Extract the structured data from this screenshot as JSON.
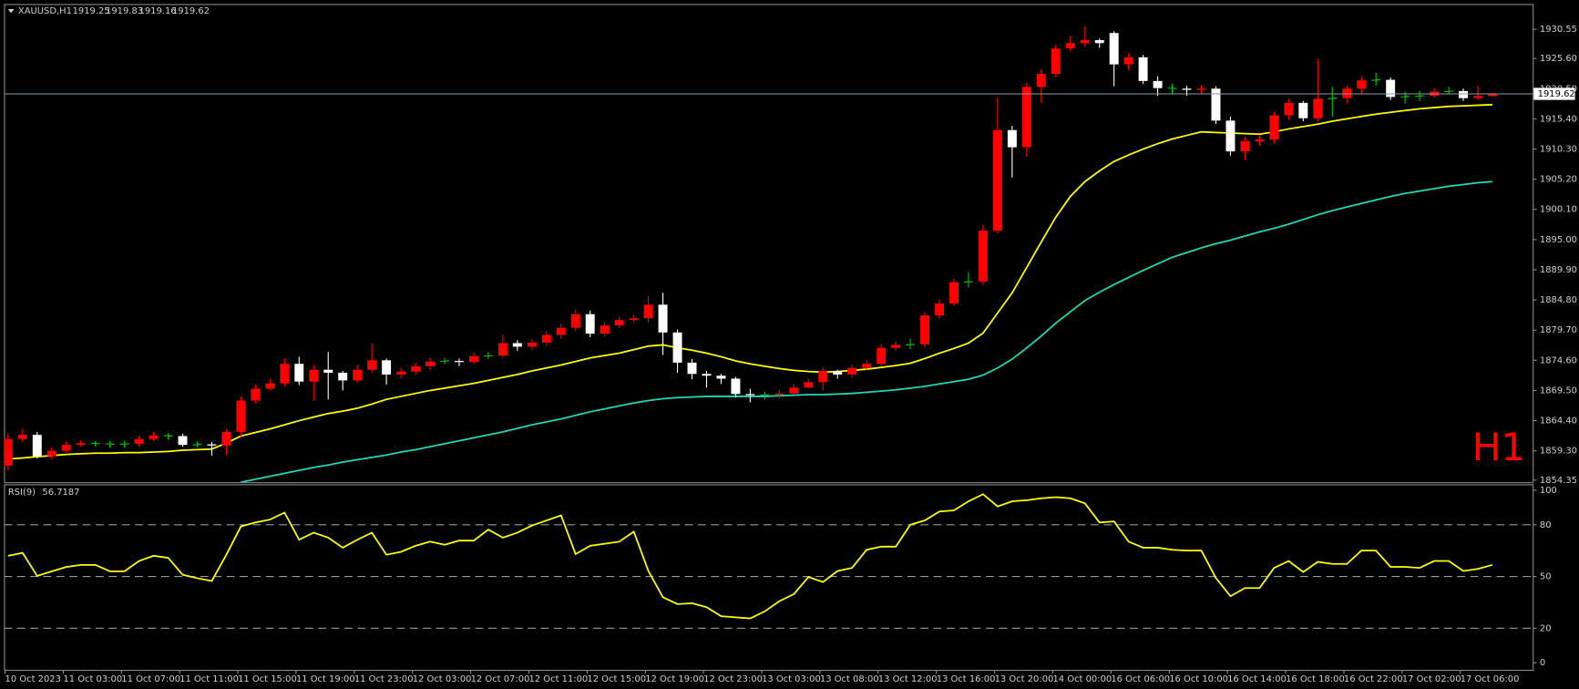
{
  "chart_data": [
    {
      "type": "candlestick",
      "title": "XAUUSD,H1",
      "annotation": "H1",
      "annotation_color": "#ff0000",
      "up_color": "#ff0000",
      "down_color": "#ffffff",
      "doji_color": "#00c800",
      "price_line": true,
      "grid": false,
      "categories": [
        "10 Oct 2023",
        null,
        null,
        null,
        "11 Oct 03:00",
        null,
        null,
        null,
        "11 Oct 07:00",
        null,
        null,
        null,
        "11 Oct 11:00",
        null,
        null,
        null,
        "11 Oct 15:00",
        null,
        null,
        null,
        "11 Oct 19:00",
        null,
        null,
        null,
        "11 Oct 23:00",
        null,
        null,
        null,
        "12 Oct 03:00",
        null,
        null,
        null,
        "12 Oct 07:00",
        null,
        null,
        null,
        "12 Oct 11:00",
        null,
        null,
        null,
        "12 Oct 15:00",
        null,
        null,
        null,
        "12 Oct 19:00",
        null,
        null,
        null,
        "12 Oct 23:00",
        null,
        null,
        null,
        "13 Oct 03:00",
        null,
        null,
        null,
        "13 Oct 08:00",
        null,
        null,
        null,
        "13 Oct 12:00",
        null,
        null,
        null,
        "13 Oct 16:00",
        null,
        null,
        null,
        "13 Oct 20:00",
        null,
        null,
        null,
        "14 Oct 00:00",
        null,
        null,
        null,
        "16 Oct 06:00",
        null,
        null,
        null,
        "16 Oct 10:00",
        null,
        null,
        null,
        "16 Oct 14:00",
        null,
        null,
        null,
        "16 Oct 18:00",
        null,
        null,
        null,
        "16 Oct 22:00",
        null,
        null,
        null,
        "17 Oct 02:00",
        null,
        null,
        null,
        "17 Oct 06:00",
        null,
        null
      ],
      "open": [
        1856.8,
        1861.3,
        1862.0,
        1858.4,
        1859.3,
        1860.3,
        1860.6,
        1860.5,
        1860.4,
        1860.5,
        1861.3,
        1861.9,
        1861.8,
        1860.3,
        1860.4,
        1860.2,
        1862.5,
        1867.8,
        1869.8,
        1870.7,
        1874.0,
        1871.0,
        1873.0,
        1872.5,
        1871.2,
        1873.0,
        1874.6,
        1872.2,
        1872.7,
        1873.6,
        1874.4,
        1874.5,
        1874.3,
        1875.3,
        1875.4,
        1877.5,
        1876.9,
        1877.6,
        1878.9,
        1880.1,
        1882.4,
        1879.1,
        1880.5,
        1881.4,
        1881.7,
        1884.0,
        1879.3,
        1874.2,
        1872.3,
        1872.0,
        1871.5,
        1868.9,
        1868.7,
        1868.8,
        1869.0,
        1870.0,
        1870.9,
        1872.8,
        1872.2,
        1873.3,
        1874.0,
        1876.7,
        1877.2,
        1877.3,
        1882.2,
        1884.2,
        1887.8,
        1887.9,
        1896.5,
        1913.5,
        1910.6,
        1920.8,
        1923.0,
        1927.3,
        1928.2,
        1928.7,
        1929.9,
        1924.6,
        1925.8,
        1921.8,
        1920.6,
        1920.5,
        1920.3,
        1920.5,
        1915.1,
        1909.9,
        1911.6,
        1911.9,
        1916.0,
        1918.1,
        1915.5,
        1918.8,
        1918.9,
        1920.5,
        1921.9,
        1922.0,
        1919.1,
        1919.2,
        1919.3,
        1920.0,
        1920.1,
        1918.9,
        1919.25
      ],
      "high": [
        1862.3,
        1863.0,
        1862.5,
        1859.9,
        1860.9,
        1861.1,
        1861.0,
        1861.0,
        1861.0,
        1861.8,
        1862.5,
        1862.3,
        1862.2,
        1860.9,
        1860.8,
        1863.0,
        1868.5,
        1870.5,
        1871.5,
        1875.0,
        1875.2,
        1873.8,
        1876.0,
        1872.8,
        1873.8,
        1877.4,
        1874.9,
        1873.3,
        1874.2,
        1875.0,
        1875.0,
        1874.9,
        1875.9,
        1876.0,
        1879.0,
        1878.0,
        1878.2,
        1879.6,
        1880.8,
        1883.2,
        1883.0,
        1881.0,
        1882.0,
        1882.3,
        1885.5,
        1886.0,
        1879.8,
        1874.8,
        1872.8,
        1872.3,
        1871.8,
        1869.8,
        1869.3,
        1869.6,
        1870.6,
        1871.5,
        1873.4,
        1873.0,
        1873.9,
        1874.6,
        1877.3,
        1877.8,
        1878.2,
        1882.8,
        1884.9,
        1888.4,
        1889.5,
        1897.5,
        1919.0,
        1914.2,
        1921.5,
        1923.8,
        1927.9,
        1929.5,
        1931.0,
        1929.0,
        1930.2,
        1926.5,
        1926.2,
        1922.6,
        1921.3,
        1921.0,
        1921.1,
        1920.9,
        1915.8,
        1912.3,
        1912.6,
        1916.6,
        1918.8,
        1918.4,
        1925.5,
        1920.8,
        1921.0,
        1922.6,
        1923.2,
        1922.4,
        1920.0,
        1920.1,
        1920.6,
        1920.8,
        1920.5,
        1921.0,
        1919.83
      ],
      "low": [
        1856.0,
        1860.8,
        1858.0,
        1857.9,
        1859.0,
        1860.0,
        1860.0,
        1859.8,
        1859.8,
        1860.0,
        1861.0,
        1861.2,
        1860.0,
        1859.9,
        1858.5,
        1858.6,
        1861.5,
        1867.3,
        1869.5,
        1870.1,
        1870.4,
        1867.8,
        1868.0,
        1869.5,
        1870.8,
        1872.5,
        1870.5,
        1871.6,
        1872.2,
        1873.0,
        1873.9,
        1873.6,
        1874.0,
        1874.8,
        1875.0,
        1876.2,
        1876.3,
        1877.0,
        1878.2,
        1879.5,
        1878.5,
        1878.6,
        1880.0,
        1881.0,
        1881.0,
        1875.5,
        1872.5,
        1871.4,
        1870.0,
        1870.6,
        1868.3,
        1867.5,
        1868.0,
        1868.2,
        1868.9,
        1869.9,
        1869.5,
        1871.5,
        1871.6,
        1873.0,
        1873.6,
        1876.3,
        1876.5,
        1876.8,
        1881.6,
        1883.8,
        1886.9,
        1887.3,
        1896.0,
        1905.5,
        1909.0,
        1918.0,
        1922.4,
        1926.8,
        1927.6,
        1927.4,
        1920.9,
        1923.6,
        1921.3,
        1919.3,
        1919.5,
        1919.3,
        1919.7,
        1914.5,
        1909.2,
        1908.4,
        1910.8,
        1911.2,
        1915.2,
        1915.0,
        1915.0,
        1915.8,
        1918.0,
        1919.5,
        1921.0,
        1918.6,
        1918.0,
        1918.4,
        1919.0,
        1919.5,
        1918.4,
        1918.6,
        1919.16
      ],
      "close": [
        1861.3,
        1862.0,
        1858.4,
        1859.3,
        1860.3,
        1860.6,
        1860.5,
        1860.4,
        1860.5,
        1861.3,
        1861.9,
        1861.8,
        1860.3,
        1860.4,
        1860.2,
        1862.5,
        1867.8,
        1869.8,
        1870.7,
        1874.0,
        1871.0,
        1873.0,
        1872.5,
        1871.2,
        1873.0,
        1874.6,
        1872.2,
        1872.7,
        1873.6,
        1874.4,
        1874.5,
        1874.3,
        1875.3,
        1875.4,
        1877.5,
        1876.9,
        1877.6,
        1878.9,
        1880.1,
        1882.4,
        1879.1,
        1880.5,
        1881.4,
        1881.7,
        1884.0,
        1879.3,
        1874.2,
        1872.3,
        1872.0,
        1871.5,
        1868.9,
        1868.7,
        1868.8,
        1869.0,
        1870.0,
        1870.9,
        1872.8,
        1872.2,
        1873.3,
        1874.0,
        1876.7,
        1877.2,
        1877.3,
        1882.2,
        1884.2,
        1887.8,
        1887.9,
        1896.5,
        1913.5,
        1910.6,
        1920.8,
        1923.0,
        1927.3,
        1928.2,
        1928.7,
        1928.2,
        1924.6,
        1925.8,
        1921.8,
        1920.6,
        1920.5,
        1920.3,
        1920.5,
        1915.1,
        1909.9,
        1911.6,
        1911.9,
        1916.0,
        1918.1,
        1915.5,
        1918.8,
        1918.9,
        1920.5,
        1921.9,
        1922.0,
        1919.1,
        1919.2,
        1919.3,
        1920.0,
        1920.1,
        1918.9,
        1919.25,
        1919.62
      ],
      "lines": [
        {
          "color": "#ffff00",
          "values": [
            1857.9,
            1858.1,
            1858.3,
            1858.5,
            1858.7,
            1858.8,
            1858.9,
            1858.9,
            1859.0,
            1859.0,
            1859.1,
            1859.2,
            1859.4,
            1859.5,
            1859.6,
            1860.6,
            1861.8,
            1862.4,
            1863.0,
            1863.7,
            1864.4,
            1865.0,
            1865.6,
            1866.0,
            1866.5,
            1867.2,
            1868.0,
            1868.5,
            1869.0,
            1869.5,
            1869.9,
            1870.3,
            1870.7,
            1871.2,
            1871.7,
            1872.2,
            1872.8,
            1873.3,
            1873.8,
            1874.4,
            1875.0,
            1875.4,
            1875.8,
            1876.4,
            1877.0,
            1877.2,
            1876.7,
            1876.3,
            1875.8,
            1875.2,
            1874.5,
            1874.0,
            1873.6,
            1873.2,
            1872.9,
            1872.7,
            1872.6,
            1872.7,
            1872.9,
            1873.1,
            1873.4,
            1873.7,
            1874.1,
            1874.9,
            1875.8,
            1876.6,
            1877.5,
            1879.2,
            1882.6,
            1886.0,
            1890.3,
            1894.6,
            1898.8,
            1902.3,
            1904.8,
            1906.6,
            1908.2,
            1909.3,
            1910.3,
            1911.2,
            1912.0,
            1912.6,
            1913.2,
            1913.1,
            1913.0,
            1912.9,
            1912.8,
            1913.2,
            1913.7,
            1914.1,
            1914.5,
            1915.0,
            1915.4,
            1915.8,
            1916.2,
            1916.5,
            1916.8,
            1917.1,
            1917.3,
            1917.5,
            1917.6,
            1917.7,
            1917.8
          ]
        },
        {
          "color": "#20d8b8",
          "values": [
            null,
            null,
            null,
            null,
            null,
            null,
            null,
            null,
            null,
            null,
            null,
            null,
            null,
            null,
            null,
            null,
            1854.0,
            1854.5,
            1855.0,
            1855.5,
            1856.0,
            1856.5,
            1856.9,
            1857.4,
            1857.8,
            1858.2,
            1858.6,
            1859.1,
            1859.5,
            1860.0,
            1860.5,
            1861.0,
            1861.5,
            1862.0,
            1862.5,
            1863.1,
            1863.7,
            1864.2,
            1864.7,
            1865.3,
            1865.9,
            1866.4,
            1866.9,
            1867.4,
            1867.8,
            1868.1,
            1868.3,
            1868.4,
            1868.5,
            1868.5,
            1868.5,
            1868.5,
            1868.5,
            1868.6,
            1868.7,
            1868.8,
            1868.8,
            1868.9,
            1869.0,
            1869.2,
            1869.4,
            1869.6,
            1869.9,
            1870.2,
            1870.6,
            1871.0,
            1871.4,
            1872.1,
            1873.3,
            1874.8,
            1876.7,
            1878.7,
            1880.9,
            1882.8,
            1884.7,
            1886.1,
            1887.4,
            1888.6,
            1889.8,
            1890.9,
            1892.0,
            1892.8,
            1893.6,
            1894.3,
            1894.9,
            1895.6,
            1896.3,
            1896.9,
            1897.6,
            1898.4,
            1899.2,
            1899.9,
            1900.5,
            1901.1,
            1901.7,
            1902.3,
            1902.8,
            1903.2,
            1903.6,
            1904.0,
            1904.3,
            1904.6,
            1904.8
          ]
        }
      ],
      "ylim": [
        1854.0,
        1934.8
      ],
      "yticks": [
        1930.55,
        {
          "value": 1925.6,
          "label": "1925.60"
        },
        {
          "value": 1920.5,
          "label": "1920.50"
        },
        {
          "value": 1915.4,
          "label": "1915.40"
        },
        {
          "value": 1910.3,
          "label": "1910.30"
        },
        {
          "value": 1905.2,
          "label": "1905.20"
        },
        {
          "value": 1900.1,
          "label": "1900.10"
        },
        {
          "value": 1895,
          "label": "1895.00"
        },
        {
          "value": 1889.9,
          "label": "1889.90"
        },
        {
          "value": 1884.8,
          "label": "1884.80"
        },
        {
          "value": 1879.7,
          "label": "1879.70"
        },
        {
          "value": 1874.6,
          "label": "1874.60"
        },
        {
          "value": 1869.5,
          "label": "1869.50"
        },
        {
          "value": 1864.4,
          "label": "1864.40"
        },
        {
          "value": 1859.3,
          "label": "1859.30"
        },
        1854.35
      ]
    },
    {
      "type": "line",
      "title": "RSI(9)",
      "series": [
        {
          "color": "#ffff00",
          "values": [
            62,
            63.7,
            50.3,
            53,
            55.5,
            56.7,
            56.7,
            53,
            53,
            59,
            62,
            60.8,
            51,
            49,
            47.4,
            62.6,
            79,
            81.3,
            83,
            87,
            71.3,
            75.4,
            72.5,
            66.7,
            71.3,
            75.4,
            62.6,
            64.3,
            67.8,
            70.2,
            68.4,
            70.8,
            70.8,
            77.2,
            72.5,
            75.4,
            79.5,
            82.5,
            85.4,
            63,
            67.8,
            69,
            70.2,
            76,
            53.2,
            38,
            34,
            34.5,
            32.2,
            27,
            26.3,
            25.7,
            29.8,
            35.7,
            39.8,
            49.7,
            46.8,
            53.2,
            55,
            65.5,
            67.3,
            67.3,
            80,
            82.5,
            87.7,
            88.3,
            93.6,
            97.7,
            90.6,
            93.6,
            94.2,
            95.3,
            96,
            95.3,
            92.4,
            81.3,
            81.9,
            70.2,
            66.7,
            66.7,
            65.5,
            65,
            65,
            49.1,
            38.6,
            43.3,
            43.3,
            55,
            59,
            52.6,
            58.5,
            57.3,
            57.3,
            65,
            65,
            55.6,
            55.6,
            55,
            59,
            59,
            53.2,
            54.4,
            56.7187
          ]
        }
      ],
      "ylim": [
        -4.1,
        102.9
      ],
      "yticks": [
        0,
        20,
        50,
        80,
        100
      ],
      "levels": [
        20,
        50,
        80
      ]
    }
  ]
}
